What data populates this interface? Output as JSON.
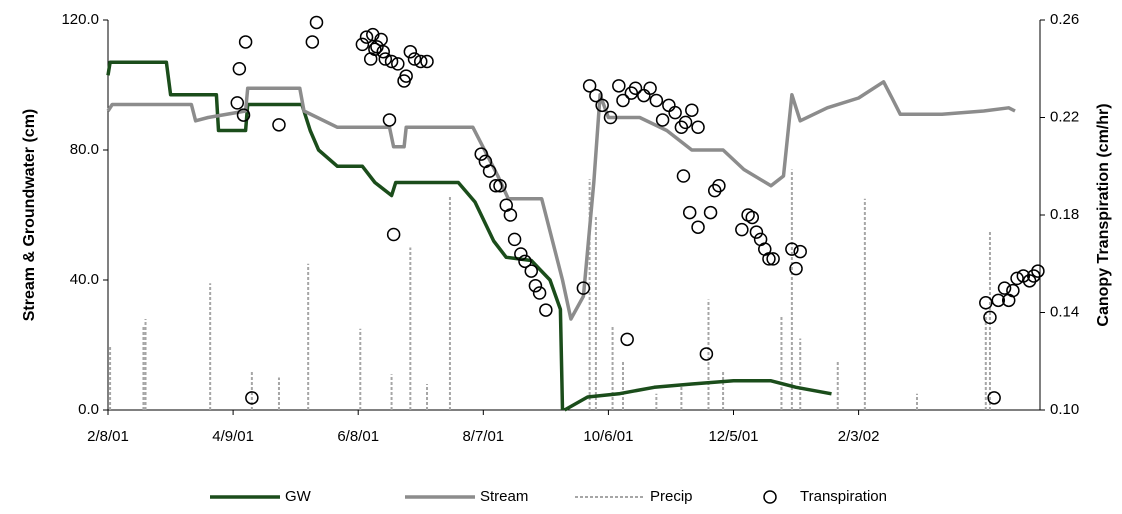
{
  "chart_data": {
    "type": "line",
    "y_label": "Stream & Groundwater (cm)",
    "y2_label": "Canopy Transpiration (cm/hr)",
    "xlim": [
      "2/8/01",
      "5/1/02"
    ],
    "xticks": [
      "2/8/01",
      "4/9/01",
      "6/8/01",
      "8/7/01",
      "10/6/01",
      "12/5/01",
      "2/3/02"
    ],
    "ylim": [
      0,
      120
    ],
    "yticks": [
      {
        "value": 0,
        "label": "0.0"
      },
      {
        "value": 40,
        "label": "40.0"
      },
      {
        "value": 80,
        "label": "80.0"
      },
      {
        "value": 120,
        "label": "120.0"
      }
    ],
    "y2lim": [
      0.1,
      0.26
    ],
    "y2ticks": [
      {
        "value": 0.1,
        "label": "0.10"
      },
      0.14,
      0.18,
      0.22,
      0.26
    ],
    "legend": "bottom",
    "series": [
      {
        "name": "GW",
        "type": "line",
        "color": "#1b4d1b",
        "x": [
          "2/8/01",
          "2/9/01",
          "3/8/01",
          "3/10/01",
          "4/1/01",
          "4/2/01",
          "4/15/01",
          "4/16/01",
          "5/12/01",
          "5/16/01",
          "5/20/01",
          "5/29/01",
          "6/10/01",
          "6/16/01",
          "6/24/01",
          "6/26/01",
          "7/26/01",
          "8/3/01",
          "8/12/01",
          "8/18/01",
          "8/30/01",
          "9/8/01",
          "9/13/01",
          "9/14/01",
          "9/15/01",
          "9/15/01",
          "9/26/01",
          "10/11/01",
          "10/28/01",
          "11/15/01",
          "12/5/01",
          "12/23/01",
          "1/4/02",
          "1/21/02"
        ],
        "values": [
          103,
          107,
          107,
          97,
          97,
          86,
          86,
          94,
          94,
          86,
          80,
          75,
          75,
          70,
          66,
          70,
          70,
          64,
          52,
          47,
          46,
          40,
          31,
          0,
          null,
          0,
          4,
          5,
          7,
          8,
          9,
          9,
          7,
          5
        ]
      },
      {
        "name": "Stream",
        "type": "line",
        "color": "#8c8c8c",
        "x": [
          "2/8/01",
          "2/10/01",
          "3/20/01",
          "3/22/01",
          "3/28/01",
          "4/15/01",
          "4/16/01",
          "5/11/01",
          "5/13/01",
          "5/29/01",
          "6/23/01",
          "6/25/01",
          "6/30/01",
          "7/1/01",
          "8/2/01",
          "8/14/01",
          "8/19/01",
          "9/4/01",
          "9/14/01",
          "9/18/01",
          "9/24/01",
          "9/29/01",
          "10/2/01",
          "10/6/01",
          "10/21/01",
          "11/3/01",
          "11/15/01",
          "11/30/01",
          "12/10/01",
          "12/23/01",
          "12/29/01",
          "1/2/02",
          "1/6/02",
          "1/19/02",
          "2/3/02",
          "2/15/02",
          "2/19/02",
          "2/23/02",
          "3/15/02",
          "4/4/02",
          "4/16/02",
          "4/19/02"
        ],
        "values": [
          92,
          94,
          94,
          89,
          90,
          92,
          99,
          99,
          92,
          87,
          87,
          81,
          81,
          87,
          87,
          72,
          65,
          65,
          40,
          28,
          35,
          70,
          97,
          90,
          90,
          86,
          80,
          80,
          74,
          69,
          72,
          97,
          89,
          93,
          96,
          101,
          96,
          91,
          91,
          92,
          93,
          92
        ]
      },
      {
        "name": "Precip",
        "type": "bar",
        "style": "dotted",
        "color": "#a6a6a6",
        "x": [
          "2/9/01",
          "2/25/01",
          "2/26/01",
          "3/29/01",
          "4/18/01",
          "5/1/01",
          "5/15/01",
          "6/9/01",
          "6/24/01",
          "7/3/01",
          "7/11/01",
          "7/22/01",
          "9/27/01",
          "9/30/01",
          "10/8/01",
          "10/13/01",
          "10/29/01",
          "11/10/01",
          "11/23/01",
          "11/30/01",
          "12/28/01",
          "1/2/02",
          "1/6/02",
          "1/24/02",
          "2/6/02",
          "3/3/02",
          "4/5/02",
          "4/7/02"
        ],
        "values": [
          20,
          26,
          28,
          39,
          12,
          10,
          45,
          25,
          11,
          50,
          8,
          66,
          71,
          60,
          26,
          15,
          5,
          8,
          34,
          12,
          29,
          74,
          22,
          15,
          65,
          5,
          31,
          55
        ]
      },
      {
        "name": "Transpiration",
        "type": "scatter",
        "axis": "y2",
        "color": "#000000",
        "x": [
          "4/18/01",
          "4/12/01",
          "4/11/01",
          "4/14/01",
          "4/15/01",
          "5/1/01",
          "5/17/01",
          "5/19/01",
          "6/10/01",
          "6/12/01",
          "6/15/01",
          "6/17/01",
          "6/19/01",
          "6/21/01",
          "6/23/01",
          "6/25/01",
          "6/14/01",
          "6/16/01",
          "6/20/01",
          "6/24/01",
          "6/27/01",
          "6/30/01",
          "7/1/01",
          "7/3/01",
          "7/5/01",
          "7/8/01",
          "7/11/01",
          "8/6/01",
          "8/8/01",
          "8/10/01",
          "8/13/01",
          "8/15/01",
          "8/18/01",
          "8/20/01",
          "8/22/01",
          "8/25/01",
          "8/27/01",
          "8/30/01",
          "9/1/01",
          "9/3/01",
          "9/6/01",
          "9/24/01",
          "9/27/01",
          "9/30/01",
          "10/3/01",
          "10/7/01",
          "10/11/01",
          "10/13/01",
          "10/17/01",
          "10/19/01",
          "10/23/01",
          "10/26/01",
          "10/29/01",
          "11/1/01",
          "11/4/01",
          "11/7/01",
          "11/10/01",
          "11/12/01",
          "11/15/01",
          "11/18/01",
          "10/15/01",
          "11/22/01",
          "11/11/01",
          "11/14/01",
          "11/18/01",
          "11/24/01",
          "11/26/01",
          "11/28/01",
          "12/9/01",
          "12/12/01",
          "12/14/01",
          "12/16/01",
          "12/18/01",
          "12/20/01",
          "12/22/01",
          "12/24/01",
          "1/2/02",
          "1/4/02",
          "1/6/02",
          "4/5/02",
          "4/7/02",
          "4/9/02",
          "4/11/02",
          "4/14/02",
          "4/16/02",
          "4/18/02",
          "4/20/02",
          "4/23/02",
          "4/26/02",
          "4/28/02",
          "4/30/02"
        ],
        "values": [
          0.105,
          0.24,
          0.226,
          0.221,
          0.251,
          0.217,
          0.251,
          0.259,
          0.25,
          0.253,
          0.254,
          0.249,
          0.252,
          0.244,
          0.219,
          0.172,
          0.244,
          0.248,
          0.247,
          0.243,
          0.242,
          0.235,
          0.237,
          0.247,
          0.244,
          0.243,
          0.243,
          0.205,
          0.202,
          0.198,
          0.192,
          0.192,
          0.184,
          0.18,
          0.17,
          0.164,
          0.161,
          0.157,
          0.151,
          0.148,
          0.141,
          0.15,
          0.233,
          0.229,
          0.225,
          0.22,
          0.233,
          0.227,
          0.23,
          0.232,
          0.229,
          0.232,
          0.227,
          0.219,
          0.225,
          0.222,
          0.216,
          0.218,
          0.223,
          0.216,
          0.129,
          0.123,
          0.196,
          0.181,
          0.175,
          0.181,
          0.19,
          0.192,
          0.174,
          0.18,
          0.179,
          0.173,
          0.17,
          0.166,
          0.162,
          0.162,
          0.166,
          0.158,
          0.165,
          0.144,
          0.138,
          0.105,
          0.145,
          0.15,
          0.145,
          0.149,
          0.154,
          0.155,
          0.153,
          0.155,
          0.157
        ]
      }
    ]
  }
}
